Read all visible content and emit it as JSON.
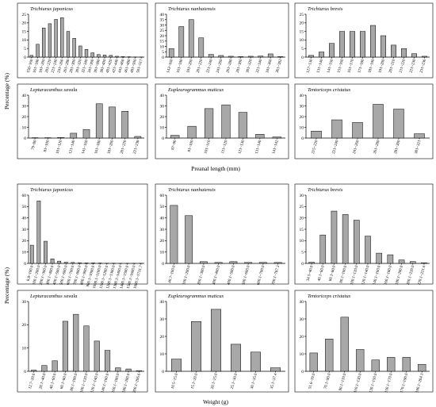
{
  "figure": {
    "top_y_label": "Percentage (%)",
    "top_x_label": "Preanal length (mm)",
    "bottom_y_label": "Percentage (%)",
    "bottom_x_label": "Weight (g)"
  },
  "chart_data": [
    {
      "type": "bar",
      "title": "Trichiurus japonicus",
      "ylim": [
        0,
        25
      ],
      "yticks": [
        0,
        5,
        10,
        15,
        20,
        25
      ],
      "categories": [
        "150~160",
        "161~180",
        "181~200",
        "201~220",
        "221~240",
        "241~260",
        "261~280",
        "281~300",
        "301~320",
        "321~340",
        "341~360",
        "361~380",
        "381~400",
        "401~420",
        "421~440",
        "441~460",
        "461~480",
        "481~500",
        "501~517"
      ],
      "values": [
        1,
        7.5,
        17,
        19.5,
        22,
        23,
        15,
        11,
        6.5,
        4.5,
        2.5,
        1.5,
        1.2,
        1,
        0.5,
        0.3,
        0.2,
        0.1,
        0.1
      ]
    },
    {
      "type": "bar",
      "title": "Trichiurus nanhaiensis",
      "ylim": [
        0,
        40
      ],
      "yticks": [
        0,
        5,
        10,
        15,
        20,
        25,
        30,
        35,
        40
      ],
      "categories": [
        "143~160",
        "161~180",
        "181~200",
        "201~220",
        "221~240",
        "241~260",
        "261~280",
        "281~300",
        "301~320",
        "321~340",
        "341~360",
        "361~382"
      ],
      "values": [
        8,
        28.5,
        35,
        18,
        2.5,
        1.5,
        0.8,
        0.5,
        0.8,
        1,
        3,
        0.5
      ]
    },
    {
      "type": "bar",
      "title": "Trichiurus brevis",
      "ylim": [
        0,
        25
      ],
      "yticks": [
        0,
        5,
        10,
        15,
        20,
        25
      ],
      "categories": [
        "127~130",
        "131~140",
        "141~150",
        "151~160",
        "161~170",
        "171~180",
        "181~190",
        "191~200",
        "201~210",
        "211~220",
        "221~230",
        "231~236"
      ],
      "values": [
        1,
        3,
        8,
        15,
        15,
        15,
        18.5,
        12.5,
        7,
        5,
        2,
        0.5
      ]
    },
    {
      "type": "bar",
      "title": "Lepturacanthus savala",
      "ylim": [
        0,
        40
      ],
      "yticks": [
        0,
        10,
        20,
        30,
        40
      ],
      "categories": [
        "79~80",
        "81~100",
        "101~120",
        "121~140",
        "141~160",
        "161~180",
        "181~200",
        "201~220",
        "221~238"
      ],
      "values": [
        0.3,
        0.3,
        0.5,
        4.5,
        8,
        32,
        29,
        25,
        1.5
      ]
    },
    {
      "type": "bar",
      "title": "Eupleurogrammus muticus",
      "ylim": [
        0,
        40
      ],
      "yticks": [
        0,
        10,
        20,
        30,
        40
      ],
      "categories": [
        "87~90",
        "91~100",
        "101~110",
        "111~120",
        "121~130",
        "131~140",
        "141~142"
      ],
      "values": [
        2.5,
        11,
        27.5,
        31,
        24,
        3.5,
        1
      ]
    },
    {
      "type": "bar",
      "title": "Tentoriceps cristatus",
      "ylim": [
        0,
        40
      ],
      "yticks": [
        0,
        10,
        20,
        30,
        40
      ],
      "categories": [
        "215~220",
        "221~240",
        "241~260",
        "261~280",
        "281~300",
        "301~321"
      ],
      "values": [
        6.5,
        17,
        14.5,
        31.5,
        27,
        4
      ]
    },
    {
      "type": "bar",
      "title": "Trichiurus  japonicus",
      "ylim": [
        0,
        60
      ],
      "yticks": [
        0,
        10,
        20,
        30,
        40,
        50,
        60
      ],
      "categories": [
        "8.8~100.0",
        "100.1~200.0",
        "200.1~300.0",
        "300.1~400.0",
        "400.1~500.0",
        "500.1~600.0",
        "600.1~700.0",
        "700.1~800.0",
        "800.1~900.0",
        "900.1~1000.0",
        "1000.1~1100.0",
        "1100.1~1200.0",
        "1200.1~1300.0",
        "1300.1~1400.0",
        "1400.1~1500.0",
        "1500.1~1600.0",
        "1600.1~1731.7"
      ],
      "values": [
        16,
        55,
        19.5,
        4,
        2,
        1,
        0.8,
        0.6,
        0.4,
        0.4,
        0.3,
        0.2,
        0.2,
        0.1,
        0.1,
        0.1,
        0.1
      ]
    },
    {
      "type": "bar",
      "title": "Trichiurus nanhaiensis",
      "ylim": [
        0,
        60
      ],
      "yticks": [
        0,
        10,
        20,
        30,
        40,
        50,
        60
      ],
      "categories": [
        "40.7~100.0",
        "100.1~200.0",
        "200.1~300.0",
        "300.1~400.0",
        "400.1~500.0",
        "500.1~600.0",
        "600.1~700.0",
        "700.1~787.3"
      ],
      "values": [
        51,
        42,
        1.5,
        0.8,
        1.5,
        0.8,
        0.8,
        0.8
      ]
    },
    {
      "type": "bar",
      "title": "Trichiurus brevis",
      "ylim": [
        0,
        30
      ],
      "yticks": [
        0,
        5,
        10,
        15,
        20,
        25,
        30
      ],
      "categories": [
        "34.5~40.0",
        "40.1~60.0",
        "60.1~80.0",
        "80.1~100.0",
        "100.1~120.0",
        "120.1~140.0",
        "140.1~160.0",
        "160.1~180.0",
        "180.1~200.0",
        "200.1~220.0",
        "220.1~221.6"
      ],
      "values": [
        0.5,
        12.5,
        23,
        21.5,
        19,
        12,
        4.5,
        3.8,
        1.5,
        0.8,
        0.3
      ]
    },
    {
      "type": "bar",
      "title": "Lepturacanthus savala",
      "ylim": [
        0,
        30
      ],
      "yticks": [
        0,
        10,
        20,
        30
      ],
      "categories": [
        "12.7~20.0",
        "20.1~40.0",
        "40.1~60.0",
        "60.1~80.0",
        "80.1~100.0",
        "100.1~120.0",
        "120.1~140.0",
        "140.1~160.0",
        "160.1~180.0",
        "180.1~200.0",
        "200.1~206.6"
      ],
      "values": [
        0.5,
        2.5,
        4.5,
        21.5,
        24.5,
        19.5,
        13,
        9,
        1.5,
        1,
        0.3
      ]
    },
    {
      "type": "bar",
      "title": "Eupleurogrammus muticus",
      "ylim": [
        0,
        40
      ],
      "yticks": [
        0,
        10,
        20,
        30,
        40
      ],
      "categories": [
        "10.5~15.0",
        "15.1~20.0",
        "20.1~25.0",
        "25.1~30.0",
        "30.1~35.0",
        "35.1~37.4"
      ],
      "values": [
        7,
        28.5,
        35.5,
        15.5,
        11,
        2
      ]
    },
    {
      "type": "bar",
      "title": "Tentoriceps cristatus",
      "ylim": [
        0,
        40
      ],
      "yticks": [
        0,
        10,
        20,
        30,
        40
      ],
      "categories": [
        "51.6~70.0",
        "70.1~90.0",
        "90.1~110.0",
        "110.1~130.0",
        "130.1~150.0",
        "150.1~170.0",
        "170.1~190.0",
        "190.1~204.3"
      ],
      "values": [
        10.5,
        18.5,
        31,
        12.5,
        6.5,
        8,
        8,
        4
      ]
    }
  ]
}
